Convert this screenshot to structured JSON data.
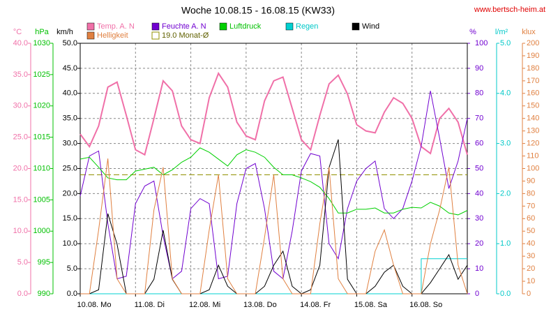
{
  "chart_data": {
    "type": "line",
    "title": "Woche 10.08.15 - 16.08.15 (KW33)",
    "source": "www.bertsch-heim.at",
    "x": [
      0,
      4,
      8,
      12,
      16,
      20,
      24,
      28,
      32,
      36,
      40,
      44,
      48,
      52,
      56,
      60,
      64,
      68,
      72,
      76,
      80,
      84,
      88,
      92,
      96,
      100,
      104,
      108,
      112,
      116,
      120,
      124,
      128,
      132,
      136,
      140,
      144,
      148,
      152,
      156,
      160,
      164,
      168
    ],
    "xlim": [
      0,
      168
    ],
    "xticks": [
      {
        "value": 0,
        "label": "10.08.  Mo"
      },
      {
        "value": 24,
        "label": "11.08.  Di"
      },
      {
        "value": 48,
        "label": "12.08.  Mi"
      },
      {
        "value": 72,
        "label": "13.08.  Do"
      },
      {
        "value": 96,
        "label": "14.08.  Fr"
      },
      {
        "value": 120,
        "label": "15.08.  Sa"
      },
      {
        "value": 144,
        "label": "16.08.  So"
      }
    ],
    "grid": true,
    "axes": {
      "temp": {
        "label": "°C",
        "color": "#f070a8",
        "lim": [
          0,
          40
        ],
        "ticks": [
          {
            "value": 0,
            "label": "0.0"
          },
          {
            "value": 5,
            "label": "5.0"
          },
          {
            "value": 10,
            "label": "10.0"
          },
          {
            "value": 15,
            "label": "15.0"
          },
          {
            "value": 20,
            "label": "20.0"
          },
          {
            "value": 25,
            "label": "25.0"
          },
          {
            "value": 30,
            "label": "30.0"
          },
          {
            "value": 35,
            "label": "35.0"
          },
          {
            "value": 40,
            "label": "40.0"
          }
        ]
      },
      "pressure": {
        "label": "hPa",
        "color": "#00c000",
        "lim": [
          990,
          1030
        ],
        "ticks": [
          990,
          995,
          1000,
          1005,
          1010,
          1015,
          1020,
          1025,
          1030
        ]
      },
      "wind": {
        "label": "km/h",
        "color": "#000000",
        "lim": [
          0,
          50
        ],
        "ticks": [
          {
            "value": 0,
            "label": "0.0"
          },
          {
            "value": 5,
            "label": "5.0"
          },
          {
            "value": 10,
            "label": "10.0"
          },
          {
            "value": 15,
            "label": "15.0"
          },
          {
            "value": 20,
            "label": "20.0"
          },
          {
            "value": 25,
            "label": "25.0"
          },
          {
            "value": 30,
            "label": "30.0"
          },
          {
            "value": 35,
            "label": "35.0"
          },
          {
            "value": 40,
            "label": "40.0"
          },
          {
            "value": 45,
            "label": "45.0"
          },
          {
            "value": 50,
            "label": "50.0"
          }
        ]
      },
      "humidity": {
        "label": "%",
        "color": "#7000d0",
        "lim": [
          0,
          100
        ],
        "ticks": [
          0,
          10,
          20,
          30,
          40,
          50,
          60,
          70,
          80,
          90,
          100
        ]
      },
      "rain": {
        "label": "l/m²",
        "color": "#00c8c8",
        "lim": [
          0,
          5
        ],
        "ticks": [
          {
            "value": 0,
            "label": "0.0"
          },
          {
            "value": 1,
            "label": "1.0"
          },
          {
            "value": 2,
            "label": "2.0"
          },
          {
            "value": 3,
            "label": "3.0"
          },
          {
            "value": 4,
            "label": "4.0"
          },
          {
            "value": 5,
            "label": "5.0"
          }
        ]
      },
      "light": {
        "label": "klux",
        "color": "#e08040",
        "lim": [
          0,
          200
        ],
        "ticks": [
          0,
          10,
          20,
          30,
          40,
          50,
          60,
          70,
          80,
          90,
          100,
          110,
          120,
          130,
          140,
          150,
          160,
          170,
          180,
          190,
          200
        ]
      }
    },
    "series": [
      {
        "name": "Temp. A. N",
        "color": "#f070a8",
        "axis": "temp",
        "values": [
          25.5,
          23.5,
          26.8,
          33,
          33.8,
          28.5,
          23,
          22.2,
          28,
          34,
          32.4,
          26.8,
          24.6,
          24,
          31.3,
          35.2,
          33,
          27.4,
          25.2,
          24.6,
          30.8,
          34,
          34.6,
          29.6,
          24.6,
          23,
          28.5,
          33.5,
          34.9,
          31.9,
          27,
          26,
          25.7,
          29,
          31.3,
          30.4,
          28,
          23.5,
          22.4,
          28,
          29.6,
          27.4,
          22.2
        ]
      },
      {
        "name": "Feuchte A. N",
        "color": "#7000d0",
        "axis": "humidity",
        "values": [
          39,
          55,
          57,
          28,
          6,
          7,
          36,
          43,
          45,
          23,
          6,
          9,
          34,
          38,
          36,
          6,
          7,
          36,
          50,
          52,
          34,
          9,
          6,
          25,
          49,
          56,
          55,
          20,
          14,
          34,
          45,
          50,
          53,
          34,
          30,
          34,
          45,
          59,
          81,
          62,
          42,
          53,
          70
        ]
      },
      {
        "name": "Luftdruck",
        "color": "#00d000",
        "axis": "pressure",
        "values": [
          1011.5,
          1011.8,
          1010.2,
          1008.5,
          1008.2,
          1008.2,
          1009.6,
          1009.9,
          1010.2,
          1009,
          1009.8,
          1011,
          1011.8,
          1013.3,
          1012.6,
          1011.5,
          1010.4,
          1012.2,
          1013,
          1012.6,
          1011.8,
          1010.2,
          1009,
          1009,
          1008.5,
          1007.9,
          1007,
          1005.2,
          1002.9,
          1002.9,
          1003.5,
          1003.5,
          1003.7,
          1002.9,
          1002.9,
          1003.5,
          1003.8,
          1003.7,
          1004.6,
          1004,
          1002.9,
          1002.6,
          1003.3
        ]
      },
      {
        "name": "Regen",
        "color": "#00d0d0",
        "axis": "rain",
        "values": [
          0,
          0,
          0,
          0,
          0,
          0,
          0,
          0,
          0,
          0,
          0,
          0,
          0,
          0,
          0,
          0,
          0,
          0,
          0,
          0,
          0,
          0,
          0,
          0,
          0,
          0,
          0,
          0,
          0,
          0,
          0,
          0,
          0,
          0,
          0,
          0,
          0,
          0.7,
          0.7,
          0.7,
          0.7,
          0.7,
          0.7
        ]
      },
      {
        "name": "Wind",
        "color": "#000000",
        "axis": "wind",
        "values": [
          0,
          0,
          0.8,
          16,
          9.9,
          0,
          0,
          0,
          2.9,
          12.7,
          2.9,
          0,
          0,
          0,
          0.8,
          5.7,
          1.5,
          0,
          0,
          0,
          1.5,
          5.7,
          8.5,
          1.5,
          0,
          0.8,
          5.7,
          25.2,
          30.8,
          2.9,
          0,
          0,
          1.5,
          4.3,
          5.7,
          1.5,
          0,
          0,
          2.2,
          5,
          7.8,
          2.9,
          5.7
        ]
      },
      {
        "name": "Helligkeit",
        "color": "#e08040",
        "axis": "light",
        "values": [
          0,
          0,
          51,
          108,
          12,
          0,
          0,
          0,
          67,
          101,
          12,
          0,
          0,
          0,
          51,
          95,
          12,
          0,
          0,
          0,
          45,
          95,
          12,
          0,
          0,
          0,
          56,
          101,
          12,
          0,
          0,
          0,
          34,
          51,
          23,
          0,
          0,
          0,
          40,
          67,
          101,
          23,
          0
        ]
      }
    ],
    "reference": {
      "name": "19.0 Monat-Ø",
      "value": 19,
      "axis": "temp",
      "color": "#909000"
    }
  }
}
